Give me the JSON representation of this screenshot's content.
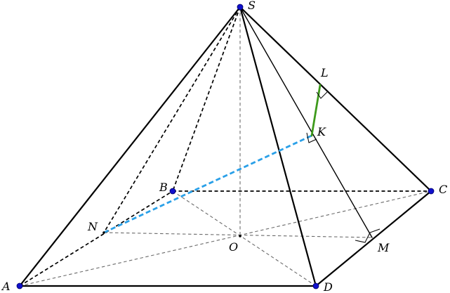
{
  "figure": {
    "type": "pyramid-diagram",
    "points": [
      {
        "id": "S",
        "label": "S"
      },
      {
        "id": "A",
        "label": "A"
      },
      {
        "id": "B",
        "label": "B"
      },
      {
        "id": "C",
        "label": "C"
      },
      {
        "id": "D",
        "label": "D"
      },
      {
        "id": "O",
        "label": "O"
      },
      {
        "id": "N",
        "label": "N"
      },
      {
        "id": "M",
        "label": "M"
      },
      {
        "id": "K",
        "label": "K"
      },
      {
        "id": "L",
        "label": "L"
      }
    ],
    "colors": {
      "vertex_dot": "#1010cc",
      "segment_nk": "#2aa0e8",
      "segment_kl": "#3e9a1c",
      "hidden_faint": "#6b6b6b"
    }
  }
}
